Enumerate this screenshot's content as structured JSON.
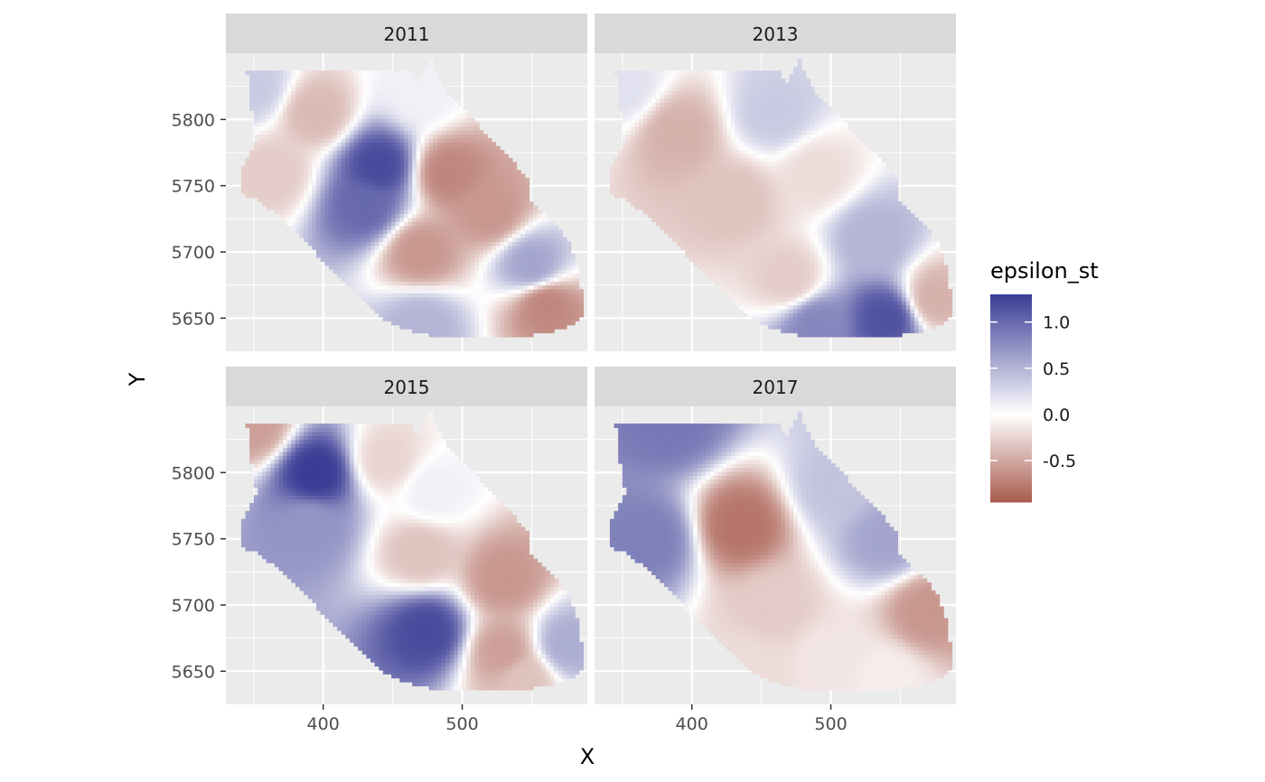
{
  "chart_data": {
    "type": "heatmap",
    "variable": "epsilon_st",
    "xlabel": "X",
    "ylabel": "Y",
    "facets": [
      "2011",
      "2013",
      "2015",
      "2017"
    ],
    "xlim": [
      330,
      590
    ],
    "ylim": [
      5625,
      5850
    ],
    "x_ticks": [
      400,
      500
    ],
    "y_ticks": [
      5650,
      5700,
      5750,
      5800
    ],
    "x_tick_labels": [
      "400",
      "500"
    ],
    "y_tick_labels": [
      "5650",
      "5700",
      "5750",
      "5800"
    ],
    "legend": {
      "title": "epsilon_st",
      "position": "right",
      "min": -0.95,
      "max": 1.3,
      "breaks": [
        1.0,
        0.5,
        0.0,
        -0.5
      ],
      "labels": [
        "1.0",
        "0.5",
        "0.0",
        "-0.5"
      ],
      "low_color": "#a85b4e",
      "mid_color": "#ffffff",
      "high_color": "#3a3c95"
    },
    "panel_background": "#ebebeb",
    "strip_background": "#d9d9d9",
    "grid_color": "#ffffff",
    "region_outline": [
      [
        345,
        5838
      ],
      [
        405,
        5838
      ],
      [
        450,
        5838
      ],
      [
        463,
        5838
      ],
      [
        467,
        5826
      ],
      [
        478,
        5848
      ],
      [
        482,
        5832
      ],
      [
        495,
        5812
      ],
      [
        508,
        5800
      ],
      [
        520,
        5785
      ],
      [
        535,
        5770
      ],
      [
        547,
        5755
      ],
      [
        548,
        5738
      ],
      [
        560,
        5728
      ],
      [
        570,
        5718
      ],
      [
        578,
        5705
      ],
      [
        583,
        5690
      ],
      [
        585,
        5675
      ],
      [
        587,
        5660
      ],
      [
        585,
        5648
      ],
      [
        572,
        5642
      ],
      [
        550,
        5637
      ],
      [
        520,
        5635
      ],
      [
        490,
        5635
      ],
      [
        465,
        5640
      ],
      [
        445,
        5648
      ],
      [
        430,
        5662
      ],
      [
        418,
        5675
      ],
      [
        398,
        5695
      ],
      [
        385,
        5712
      ],
      [
        370,
        5725
      ],
      [
        355,
        5738
      ],
      [
        340,
        5745
      ],
      [
        340,
        5760
      ],
      [
        352,
        5785
      ],
      [
        348,
        5810
      ],
      [
        345,
        5838
      ]
    ],
    "anomaly_centers": {
      "2011": [
        {
          "x": 350,
          "y": 5825,
          "value": 0.35
        },
        {
          "x": 395,
          "y": 5805,
          "value": -0.4
        },
        {
          "x": 440,
          "y": 5765,
          "value": 1.2
        },
        {
          "x": 430,
          "y": 5735,
          "value": 1.0
        },
        {
          "x": 470,
          "y": 5820,
          "value": 0.1
        },
        {
          "x": 490,
          "y": 5760,
          "value": -0.7
        },
        {
          "x": 520,
          "y": 5730,
          "value": -0.6
        },
        {
          "x": 550,
          "y": 5690,
          "value": 0.6
        },
        {
          "x": 470,
          "y": 5700,
          "value": -0.6
        },
        {
          "x": 560,
          "y": 5660,
          "value": -0.7
        },
        {
          "x": 470,
          "y": 5645,
          "value": 0.5
        },
        {
          "x": 365,
          "y": 5760,
          "value": -0.3
        }
      ],
      "2013": [
        {
          "x": 350,
          "y": 5825,
          "value": 0.2
        },
        {
          "x": 390,
          "y": 5790,
          "value": -0.45
        },
        {
          "x": 460,
          "y": 5805,
          "value": 0.35
        },
        {
          "x": 430,
          "y": 5740,
          "value": -0.35
        },
        {
          "x": 490,
          "y": 5760,
          "value": -0.2
        },
        {
          "x": 530,
          "y": 5710,
          "value": 0.5
        },
        {
          "x": 540,
          "y": 5650,
          "value": 1.15
        },
        {
          "x": 470,
          "y": 5680,
          "value": -0.3
        },
        {
          "x": 575,
          "y": 5665,
          "value": -0.45
        },
        {
          "x": 490,
          "y": 5645,
          "value": 0.8
        }
      ],
      "2015": [
        {
          "x": 350,
          "y": 5835,
          "value": -0.55
        },
        {
          "x": 395,
          "y": 5800,
          "value": 1.3
        },
        {
          "x": 390,
          "y": 5760,
          "value": 0.7
        },
        {
          "x": 445,
          "y": 5810,
          "value": -0.25
        },
        {
          "x": 480,
          "y": 5785,
          "value": 0.1
        },
        {
          "x": 470,
          "y": 5740,
          "value": -0.35
        },
        {
          "x": 530,
          "y": 5720,
          "value": -0.6
        },
        {
          "x": 475,
          "y": 5680,
          "value": 1.2
        },
        {
          "x": 530,
          "y": 5665,
          "value": -0.55
        },
        {
          "x": 575,
          "y": 5670,
          "value": 0.55
        },
        {
          "x": 545,
          "y": 5645,
          "value": -0.35
        }
      ],
      "2017": [
        {
          "x": 385,
          "y": 5838,
          "value": 0.9
        },
        {
          "x": 370,
          "y": 5750,
          "value": 0.85
        },
        {
          "x": 435,
          "y": 5760,
          "value": -0.8
        },
        {
          "x": 505,
          "y": 5790,
          "value": 0.4
        },
        {
          "x": 540,
          "y": 5750,
          "value": 0.6
        },
        {
          "x": 460,
          "y": 5700,
          "value": -0.3
        },
        {
          "x": 500,
          "y": 5660,
          "value": -0.15
        },
        {
          "x": 570,
          "y": 5695,
          "value": -0.6
        },
        {
          "x": 440,
          "y": 5650,
          "value": -0.2
        },
        {
          "x": 540,
          "y": 5645,
          "value": -0.1
        }
      ]
    }
  }
}
